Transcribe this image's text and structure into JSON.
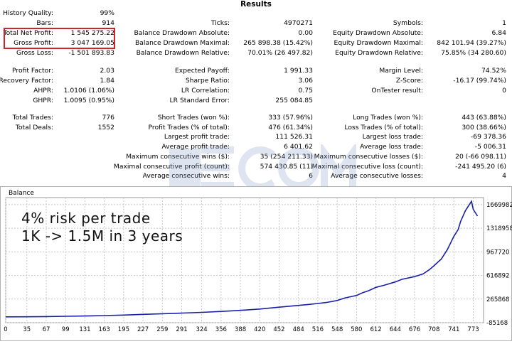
{
  "title": "Results",
  "col1": [
    {
      "label": "History Quality:",
      "value": "99%"
    },
    {
      "label": "Bars:",
      "value": "914"
    },
    {
      "label": "Total Net Profit:",
      "value": "1 545 275.22"
    },
    {
      "label": "Gross Profit:",
      "value": "3 047 169.05"
    },
    {
      "label": "Gross Loss:",
      "value": "-1 501 893.83"
    },
    {
      "label": "Profit Factor:",
      "value": "2.03"
    },
    {
      "label": "Recovery Factor:",
      "value": "1.84"
    },
    {
      "label": "AHPR:",
      "value": "1.0106 (1.06%)"
    },
    {
      "label": "GHPR:",
      "value": "1.0095 (0.95%)"
    },
    {
      "label": "Total Trades:",
      "value": "776"
    },
    {
      "label": "Total Deals:",
      "value": "1552"
    }
  ],
  "col2": [
    {
      "label": "Ticks:",
      "value": "4970271"
    },
    {
      "label": "Balance Drawdown Absolute:",
      "value": "0.00"
    },
    {
      "label": "Balance Drawdown Maximal:",
      "value": "265 898.38 (15.42%)"
    },
    {
      "label": "Balance Drawdown Relative:",
      "value": "70.01% (26 497.82)"
    },
    {
      "label": "Expected Payoff:",
      "value": "1 991.33"
    },
    {
      "label": "Sharpe Ratio:",
      "value": "3.06"
    },
    {
      "label": "LR Correlation:",
      "value": "0.75"
    },
    {
      "label": "LR Standard Error:",
      "value": "255 084.85"
    },
    {
      "label": "Short Trades (won %):",
      "value": "333 (57.96%)"
    },
    {
      "label": "Profit Trades (% of total):",
      "value": "476 (61.34%)"
    },
    {
      "label": "Largest profit trade:",
      "value": "111 526.31"
    },
    {
      "label": "Average profit trade:",
      "value": "6 401.62"
    },
    {
      "label": "Maximum consecutive wins ($):",
      "value": "35 (254 211.33)"
    },
    {
      "label": "Maximal consecutive profit (count):",
      "value": "574 430.85 (11)"
    },
    {
      "label": "Average consecutive wins:",
      "value": "6"
    }
  ],
  "col3": [
    {
      "label": "Symbols:",
      "value": "1"
    },
    {
      "label": "Equity Drawdown Absolute:",
      "value": "6.84"
    },
    {
      "label": "Equity Drawdown Maximal:",
      "value": "842 101.94 (39.27%)"
    },
    {
      "label": "Equity Drawdown Relative:",
      "value": "75.85% (34 280.60)"
    },
    {
      "label": "Margin Level:",
      "value": "74.52%"
    },
    {
      "label": "Z-Score:",
      "value": "-16.17 (99.74%)"
    },
    {
      "label": "OnTester result:",
      "value": "0"
    },
    {
      "label": "Long Trades (won %):",
      "value": "443 (63.88%)"
    },
    {
      "label": "Loss Trades (% of total):",
      "value": "300 (38.66%)"
    },
    {
      "label": "Largest loss trade:",
      "value": "-69 378.36"
    },
    {
      "label": "Average loss trade:",
      "value": "-5 006.31"
    },
    {
      "label": "Maximum consecutive losses ($):",
      "value": "20 (-66 098.11)"
    },
    {
      "label": "Maximal consecutive loss (count):",
      "value": "-241 495.20 (6)"
    },
    {
      "label": "Average consecutive losses:",
      "value": "4"
    }
  ],
  "watermark": "ecomforex.com",
  "overlay": {
    "line1": "4% risk per trade",
    "line2": "1K -> 1.5M in 3 years"
  },
  "colors": {
    "highlight": "#d2232a",
    "line": "#1a1fa8",
    "watermark": "#9aa8c8"
  },
  "chart_data": {
    "type": "line",
    "title": "Balance",
    "xlabel": "",
    "ylabel": "",
    "x_ticks": [
      "0",
      "35",
      "67",
      "99",
      "131",
      "163",
      "195",
      "227",
      "259",
      "291",
      "324",
      "356",
      "388",
      "420",
      "452",
      "484",
      "516",
      "548",
      "580",
      "612",
      "644",
      "676",
      "708",
      "741",
      "773"
    ],
    "y_ticks": [
      "1669982",
      "1318958",
      "967720",
      "616892",
      "265868",
      "-85168"
    ],
    "xlim": [
      0,
      790
    ],
    "ylim": [
      -85168,
      1775000
    ],
    "grid": true,
    "series": [
      {
        "x": [
          0,
          35,
          67,
          99,
          131,
          163,
          195,
          227,
          259,
          291,
          324,
          356,
          388,
          420,
          452,
          484,
          500,
          516,
          530,
          548,
          560,
          575,
          580,
          590,
          600,
          612,
          625,
          644,
          655,
          676,
          690,
          700,
          708,
          715,
          720,
          730,
          741,
          748,
          752,
          760,
          770,
          773,
          780
        ],
        "y": [
          1000,
          3000,
          6000,
          10000,
          14000,
          20000,
          28000,
          38000,
          48000,
          58000,
          68000,
          82000,
          98000,
          118000,
          145000,
          172000,
          185000,
          200000,
          215000,
          245000,
          280000,
          310000,
          320000,
          360000,
          390000,
          440000,
          470000,
          520000,
          560000,
          600000,
          640000,
          700000,
          760000,
          820000,
          860000,
          1000000,
          1200000,
          1300000,
          1420000,
          1580000,
          1720000,
          1600000,
          1500000
        ]
      }
    ]
  }
}
